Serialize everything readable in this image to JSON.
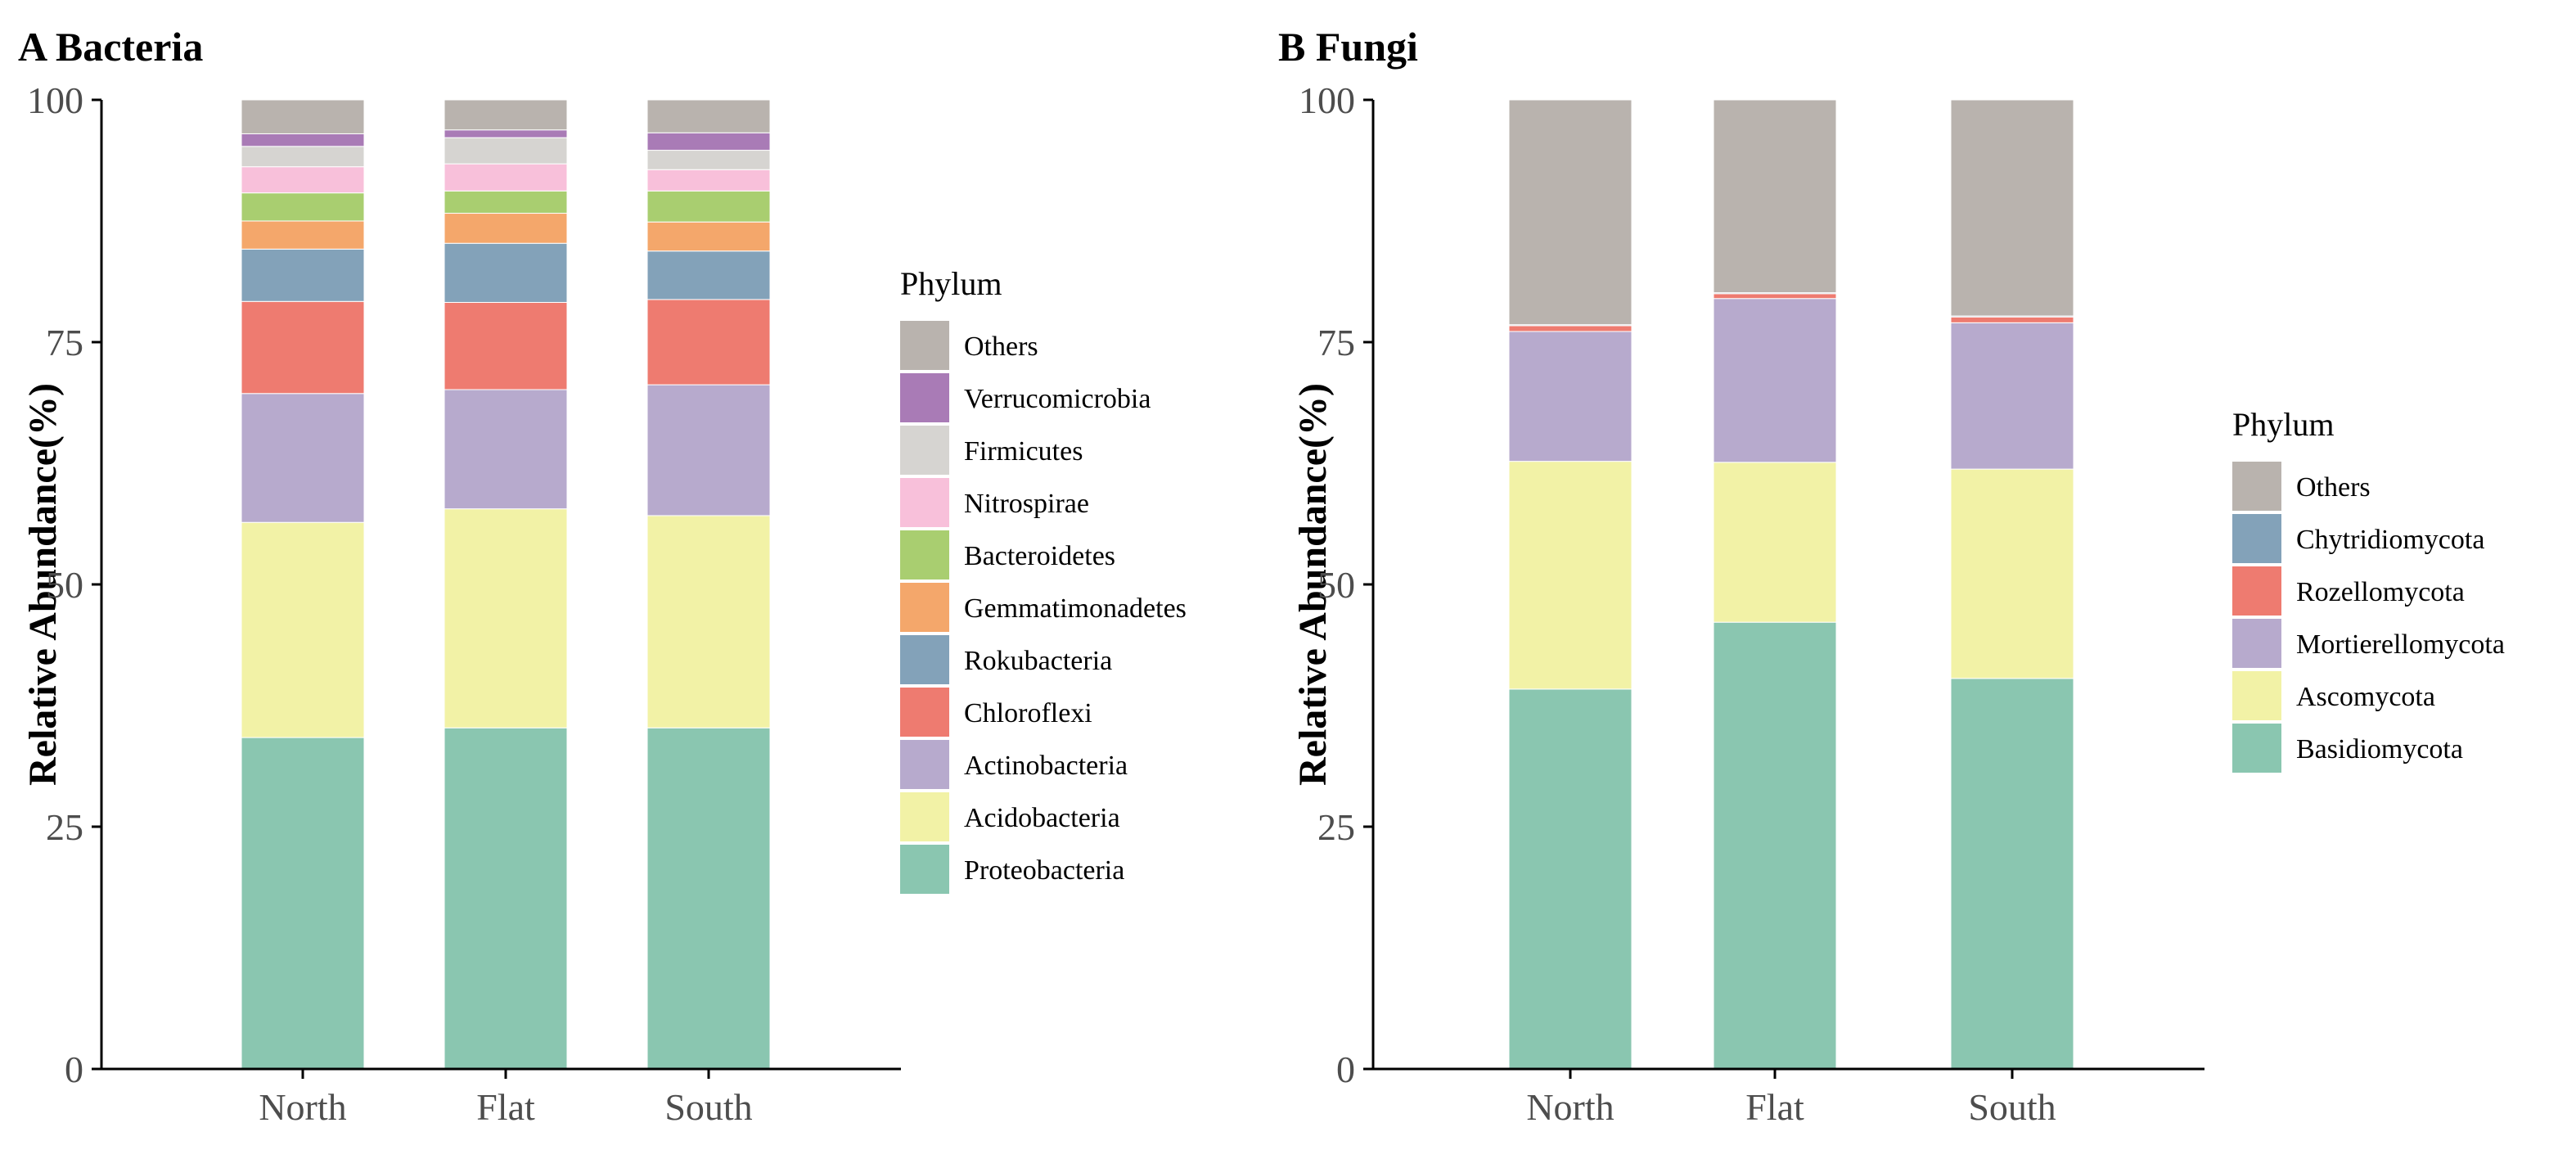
{
  "chart_data": [
    {
      "type": "bar",
      "stacked": true,
      "title": "A Bacteria",
      "xlabel": "",
      "ylabel": "Relative Abundance(%)",
      "ylim": [
        0,
        100
      ],
      "yticks": [
        "0",
        "25",
        "50",
        "75",
        "100"
      ],
      "categories": [
        "North",
        "Flat",
        "South"
      ],
      "legend_title": "Phylum",
      "series": [
        {
          "name": "Proteobacteria",
          "color": "#8ac6b0",
          "values": [
            34.2,
            35.2,
            35.2
          ]
        },
        {
          "name": "Acidobacteria",
          "color": "#f2f2a6",
          "values": [
            22.2,
            22.6,
            21.9
          ]
        },
        {
          "name": "Actinobacteria",
          "color": "#b7aacd",
          "values": [
            13.3,
            12.3,
            13.5
          ]
        },
        {
          "name": "Chloroflexi",
          "color": "#ee7b70",
          "values": [
            9.5,
            9.0,
            8.8
          ]
        },
        {
          "name": "Rokubacteria",
          "color": "#83a2b9",
          "values": [
            5.4,
            6.1,
            5.0
          ]
        },
        {
          "name": "Gemmatimonadetes",
          "color": "#f4a76b",
          "values": [
            2.9,
            3.1,
            3.0
          ]
        },
        {
          "name": "Bacteroidetes",
          "color": "#a9ce70",
          "values": [
            2.9,
            2.3,
            3.2
          ]
        },
        {
          "name": "Nitrospirae",
          "color": "#f8c0da",
          "values": [
            2.7,
            2.8,
            2.2
          ]
        },
        {
          "name": "Firmicutes",
          "color": "#d6d4d1",
          "values": [
            2.1,
            2.7,
            2.0
          ]
        },
        {
          "name": "Verrucomicrobia",
          "color": "#a97bb6",
          "values": [
            1.3,
            0.8,
            1.8
          ]
        },
        {
          "name": "Others",
          "color": "#b9b3ae",
          "values": [
            3.5,
            3.1,
            3.4
          ]
        }
      ]
    },
    {
      "type": "bar",
      "stacked": true,
      "title": "B Fungi",
      "xlabel": "",
      "ylabel": "Relative Abundance(%)",
      "ylim": [
        0,
        100
      ],
      "yticks": [
        "0",
        "25",
        "50",
        "75",
        "100"
      ],
      "categories": [
        "North",
        "Flat",
        "South"
      ],
      "legend_title": "Phylum",
      "series": [
        {
          "name": "Basidiomycota",
          "color": "#8ac6b0",
          "values": [
            39.2,
            46.1,
            40.3
          ]
        },
        {
          "name": "Ascomycota",
          "color": "#f2f2a6",
          "values": [
            23.5,
            16.5,
            21.6
          ]
        },
        {
          "name": "Mortierellomycota",
          "color": "#b7aacd",
          "values": [
            13.4,
            16.9,
            15.1
          ]
        },
        {
          "name": "Rozellomycota",
          "color": "#ee7b70",
          "values": [
            0.6,
            0.5,
            0.6
          ]
        },
        {
          "name": "Chytridiomycota",
          "color": "#83a2b9",
          "values": [
            0.1,
            0.1,
            0.1
          ]
        },
        {
          "name": "Others",
          "color": "#b9b3ae",
          "values": [
            23.2,
            19.9,
            22.3
          ]
        }
      ]
    }
  ]
}
